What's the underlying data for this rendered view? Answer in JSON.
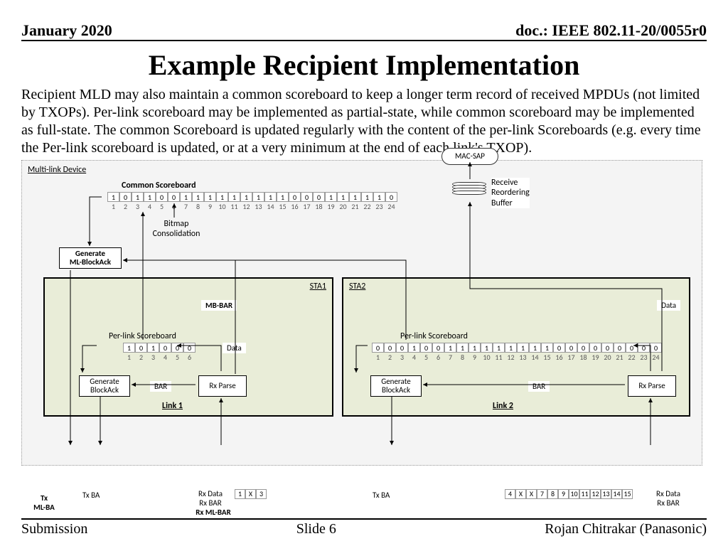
{
  "header": {
    "date": "January 2020",
    "doc": "doc.: IEEE 802.11-20/0055r0"
  },
  "title": "Example Recipient Implementation",
  "paragraph": "Recipient MLD may also maintain a common scoreboard to keep a longer term record of received MPDUs (not limited by TXOPs). Per-link scoreboard may be implemented as partial-state, while common scoreboard may be implemented as full-state. The common Scoreboard is updated regularly with the content of the per-link Scoreboards (e.g. every time the Per-link scoreboard is updated, or at a very minimum at the end of each link's TXOP).",
  "diagram": {
    "mld_label": "Multi-link Device",
    "mac_sap": "MAC-SAP",
    "common_sb_title": "Common Scoreboard",
    "common_sb_bits": [
      "1",
      "0",
      "1",
      "1",
      "0",
      "0",
      "1",
      "1",
      "1",
      "1",
      "1",
      "1",
      "1",
      "1",
      "1",
      "0",
      "0",
      "0",
      "1",
      "1",
      "1",
      "1",
      "1",
      "0"
    ],
    "common_sb_idx": [
      "1",
      "2",
      "3",
      "4",
      "5",
      "6",
      "7",
      "8",
      "9",
      "10",
      "11",
      "12",
      "13",
      "14",
      "15",
      "16",
      "17",
      "18",
      "19",
      "20",
      "21",
      "22",
      "23",
      "24"
    ],
    "bitmap_note_l1": "Bitmap",
    "bitmap_note_l2": "Consolidation",
    "gen_ml_ba_l1": "Generate",
    "gen_ml_ba_l2": "ML-BlockAck",
    "buffer_l1": "Receive",
    "buffer_l2": "Reordering",
    "buffer_l3": "Buffer",
    "sta1": {
      "label": "STA1",
      "mb_bar": "MB-BAR",
      "perlink_title": "Per-link Scoreboard",
      "perlink_bits": [
        "1",
        "0",
        "1",
        "0",
        "0",
        "0"
      ],
      "perlink_idx": [
        "1",
        "2",
        "3",
        "4",
        "5",
        "6"
      ],
      "data": "Data",
      "gen_ba_l1": "Generate",
      "gen_ba_l2": "BlockAck",
      "bar": "BAR",
      "rx_parse": "Rx Parse",
      "link": "Link 1"
    },
    "sta2": {
      "label": "STA2",
      "perlink_title": "Per-link Scoreboard",
      "perlink_bits": [
        "0",
        "0",
        "0",
        "1",
        "0",
        "0",
        "1",
        "1",
        "1",
        "1",
        "1",
        "1",
        "1",
        "1",
        "1",
        "0",
        "0",
        "0",
        "0",
        "0",
        "0",
        "0",
        "0",
        "0"
      ],
      "perlink_idx": [
        "1",
        "2",
        "3",
        "4",
        "5",
        "6",
        "7",
        "8",
        "9",
        "10",
        "11",
        "12",
        "13",
        "14",
        "15",
        "16",
        "17",
        "18",
        "19",
        "20",
        "21",
        "22",
        "23",
        "24"
      ],
      "data": "Data",
      "gen_ba_l1": "Generate",
      "gen_ba_l2": "BlockAck",
      "bar": "BAR",
      "rx_parse": "Rx Parse",
      "link": "Link 2"
    }
  },
  "overflow": {
    "tx_ml_ba_l1": "Tx",
    "tx_ml_ba_l2": "ML-BA",
    "txba1": "Tx BA",
    "rxdata1_l1": "Rx Data",
    "rxdata1_l2": "Rx BAR",
    "rx_ml_bar": "Rx ML-BAR",
    "seq1": [
      "1",
      "X",
      "3"
    ],
    "txba2": "Tx BA",
    "seq2": [
      "4",
      "X",
      "X",
      "7",
      "8",
      "9",
      "10",
      "11",
      "12",
      "13",
      "14",
      "15"
    ],
    "rxdata2_l1": "Rx Data",
    "rxdata2_l2": "Rx BAR"
  },
  "footer": {
    "left": "Submission",
    "mid": "Slide 6",
    "right": "Rojan Chitrakar (Panasonic)"
  }
}
